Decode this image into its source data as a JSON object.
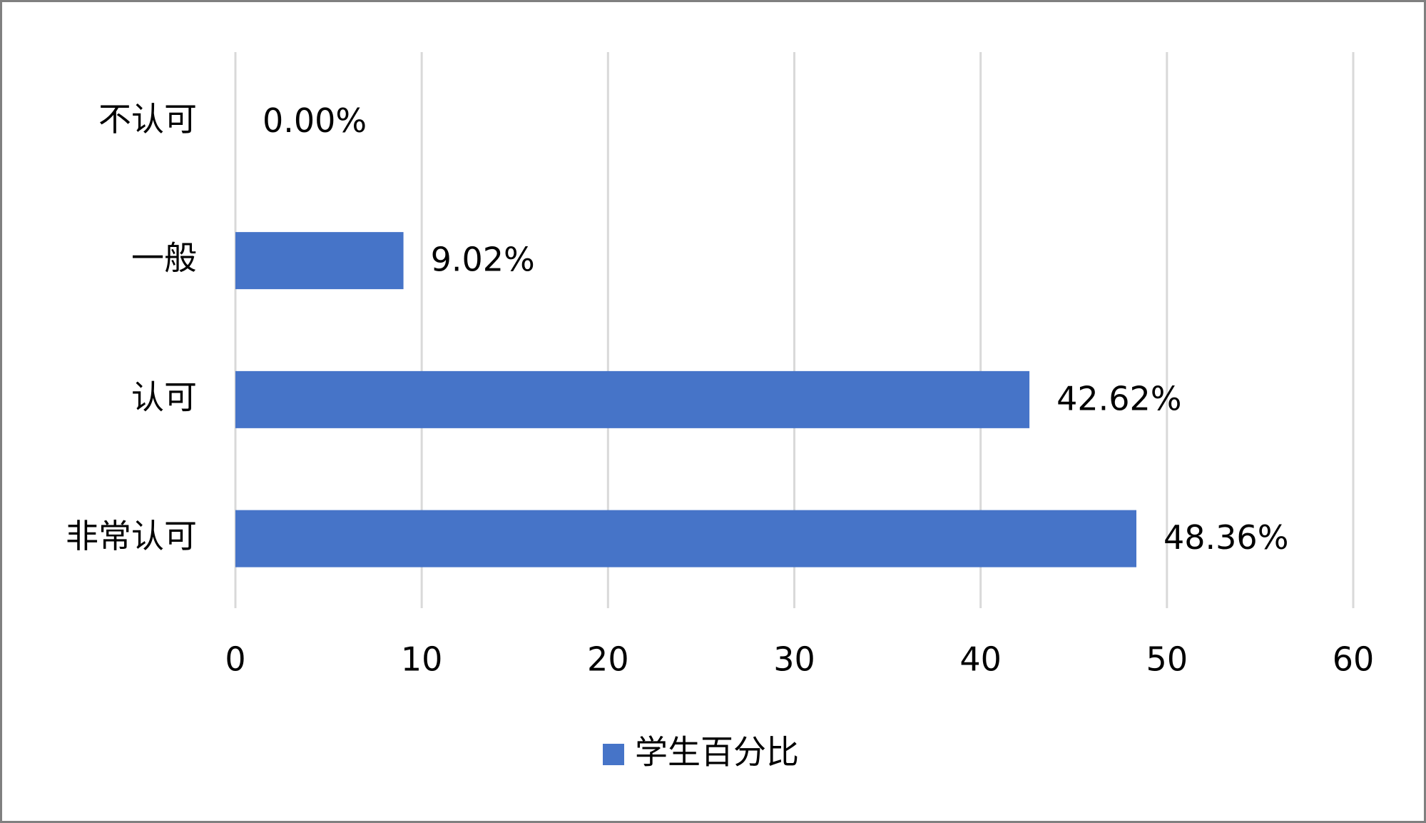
{
  "chart_data": {
    "type": "bar",
    "orientation": "horizontal",
    "categories": [
      "不认可",
      "一般",
      "认可",
      "非常认可"
    ],
    "series": [
      {
        "name": "学生百分比",
        "color": "#4674c8",
        "values": [
          0,
          9.02,
          42.62,
          48.36
        ],
        "value_labels": [
          "0.00%",
          "9.02%",
          "42.62%",
          "48.36%"
        ]
      }
    ],
    "xlim": [
      0,
      60
    ],
    "xticks": [
      0,
      10,
      20,
      30,
      40,
      50,
      60
    ],
    "grid": true,
    "legend": "bottom"
  }
}
